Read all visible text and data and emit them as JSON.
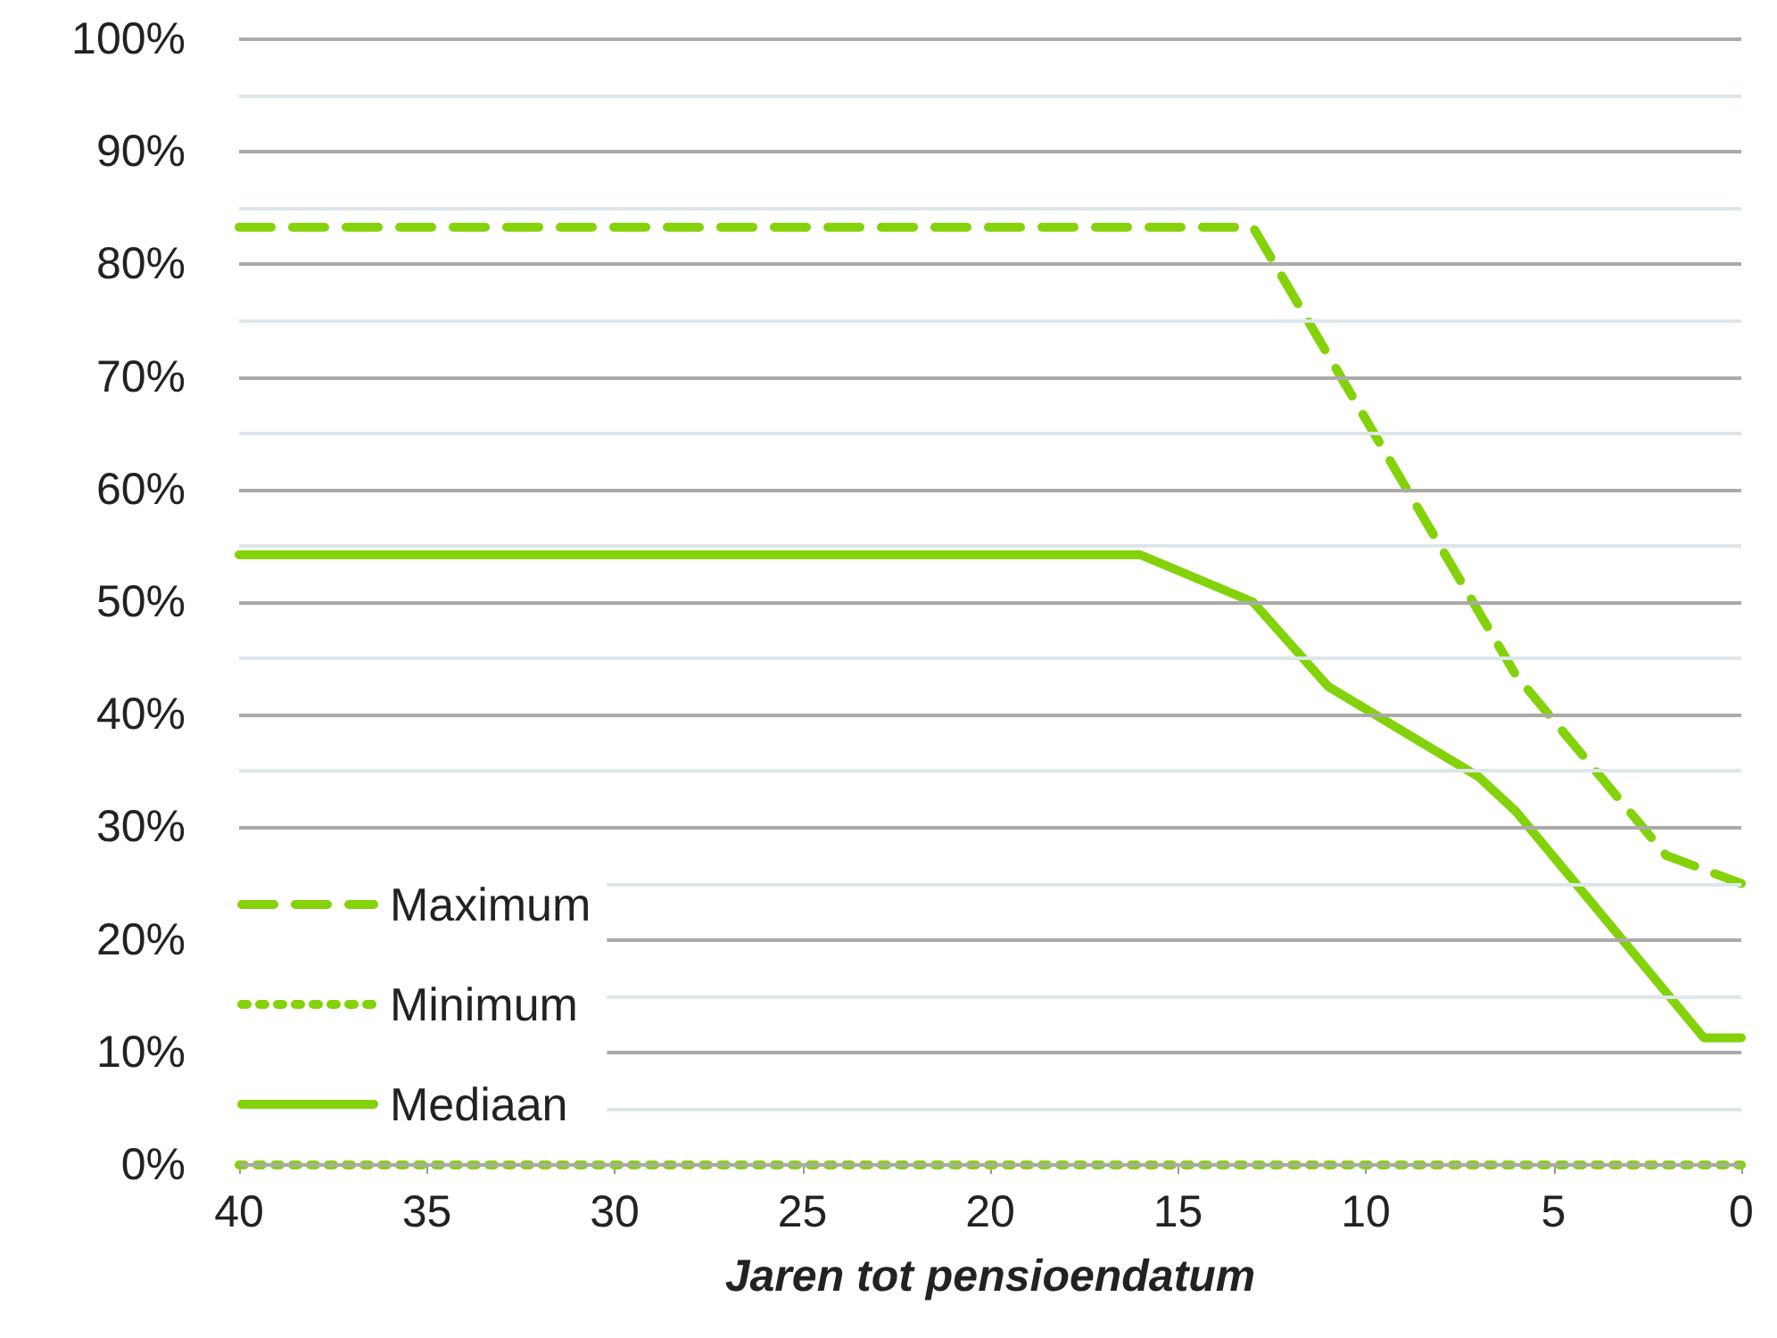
{
  "chart_data": {
    "type": "line",
    "xlabel": "Jaren tot pensioendatum",
    "x": [
      40,
      13,
      6,
      2,
      0
    ],
    "series": [
      {
        "name": "Maximum",
        "color": "#84d20a",
        "line_style": "dashed",
        "values": [
          83.3,
          83.3,
          43.5,
          27.5,
          25.0
        ]
      },
      {
        "name": "Minimum",
        "color": "#84d20a",
        "line_style": "dotted",
        "x": [
          40,
          0
        ],
        "values": [
          0,
          0
        ]
      },
      {
        "name": "Mediaan",
        "color": "#84d20a",
        "line_style": "solid",
        "x": [
          40,
          16,
          13,
          11,
          7,
          6,
          1,
          0
        ],
        "values": [
          54.2,
          54.2,
          50.0,
          42.5,
          34.5,
          31.4,
          11.3,
          11.3
        ]
      }
    ],
    "xlim": [
      40,
      0
    ],
    "xticks": [
      40,
      35,
      30,
      25,
      20,
      15,
      10,
      5,
      0
    ],
    "ylim": [
      0,
      100
    ],
    "yticks": [
      {
        "value": 0,
        "label": "0%"
      },
      {
        "value": 5,
        "label": null
      },
      {
        "value": 10,
        "label": "10%"
      },
      {
        "value": 15,
        "label": null
      },
      {
        "value": 20,
        "label": "20%"
      },
      {
        "value": 25,
        "label": null
      },
      {
        "value": 30,
        "label": "30%"
      },
      {
        "value": 35,
        "label": null
      },
      {
        "value": 40,
        "label": "40%"
      },
      {
        "value": 45,
        "label": null
      },
      {
        "value": 50,
        "label": "50%"
      },
      {
        "value": 55,
        "label": null
      },
      {
        "value": 60,
        "label": "60%"
      },
      {
        "value": 65,
        "label": null
      },
      {
        "value": 70,
        "label": "70%"
      },
      {
        "value": 75,
        "label": null
      },
      {
        "value": 80,
        "label": "80%"
      },
      {
        "value": 85,
        "label": null
      },
      {
        "value": 90,
        "label": "90%"
      },
      {
        "value": 95,
        "label": null
      },
      {
        "value": 100,
        "label": "100%"
      }
    ],
    "grid": "y",
    "legend": "bottom left",
    "marker": "none"
  }
}
